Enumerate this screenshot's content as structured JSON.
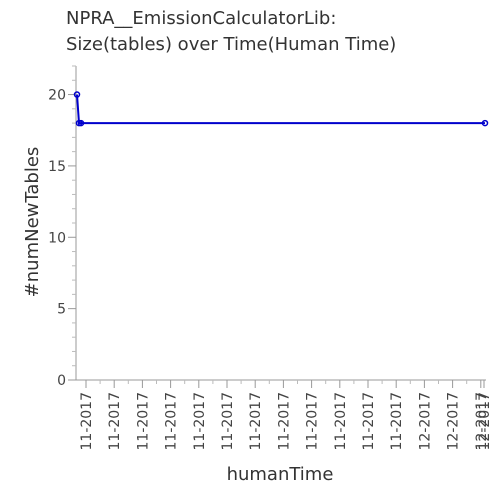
{
  "chart_data": {
    "type": "line",
    "title_line1": "NPRA__EmissionCalculatorLib:",
    "title_line2": "Size(tables) over Time(Human Time)",
    "xlabel": "humanTime",
    "ylabel": "#numNewTables",
    "ylim": [
      0,
      22
    ],
    "yticks": [
      0,
      5,
      10,
      15,
      20
    ],
    "grid": false,
    "legend": "none",
    "x_ticks": [
      "11-2017",
      "11-2017",
      "11-2017",
      "11-2017",
      "11-2017",
      "11-2017",
      "11-2017",
      "11-2017",
      "11-2017",
      "11-2017",
      "11-2017",
      "11-2017",
      "12-2017",
      "12-2017",
      "12-2017",
      "12-2017"
    ],
    "series": [
      {
        "color": "#0000cc",
        "x": [
          "11-2017",
          "11-2017",
          "11-2017",
          "12-2017"
        ],
        "values": [
          20,
          18,
          18,
          18
        ]
      }
    ]
  }
}
